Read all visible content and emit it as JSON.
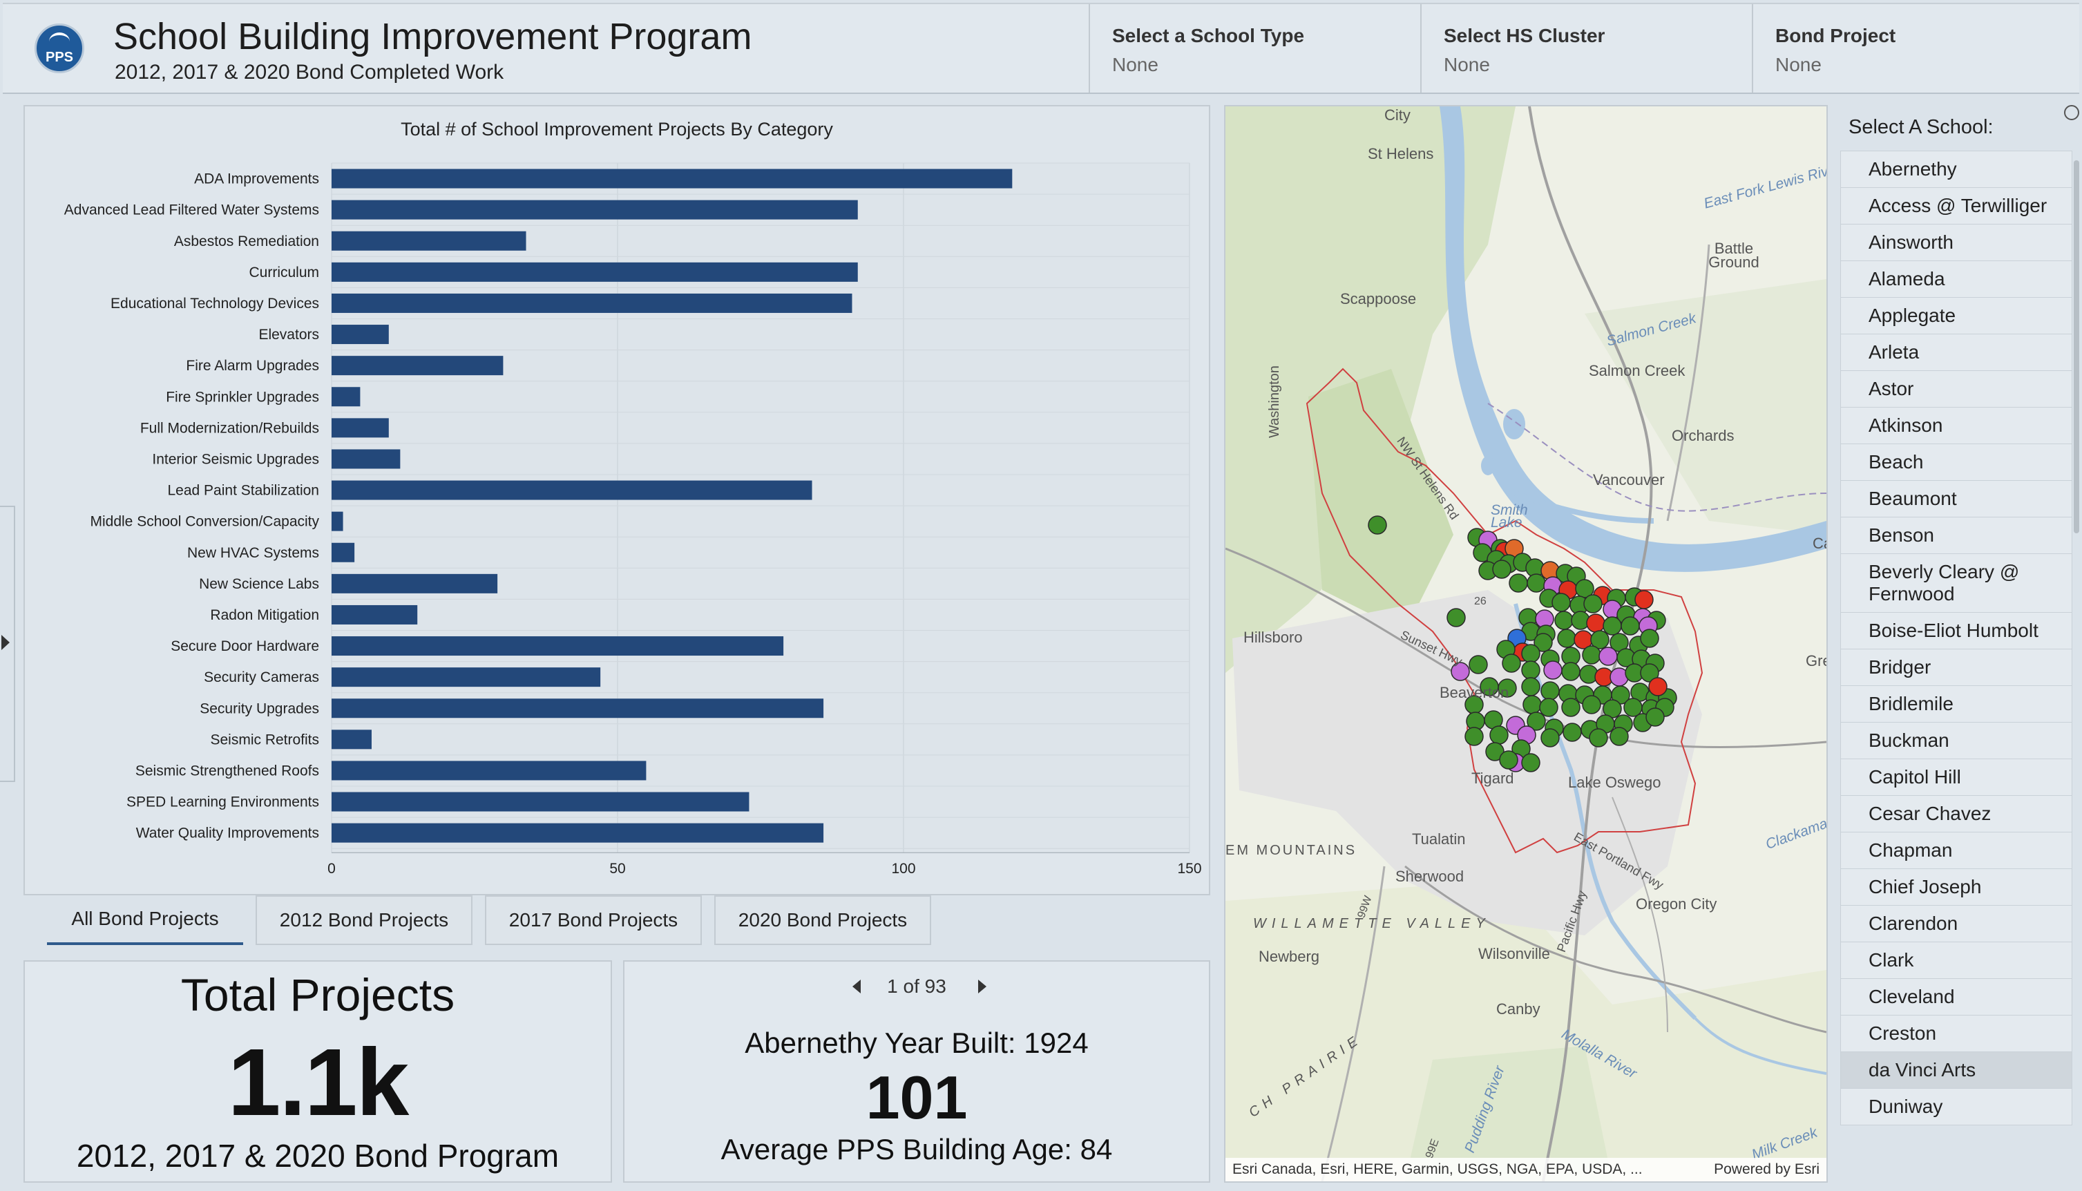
{
  "header": {
    "title": "School Building Improvement Program",
    "subtitle": "2012, 2017 & 2020 Bond Completed Work",
    "logo_text": "PPS",
    "selectors": [
      {
        "label": "Select a School Type",
        "value": "None"
      },
      {
        "label": "Select HS Cluster",
        "value": "None"
      },
      {
        "label": "Bond Project",
        "value": "None"
      }
    ]
  },
  "chart_data": {
    "type": "bar",
    "orientation": "horizontal",
    "title": "Total # of School Improvement Projects By Category",
    "categories": [
      "ADA Improvements",
      "Advanced Lead Filtered Water Systems",
      "Asbestos Remediation",
      "Curriculum",
      "Educational Technology Devices",
      "Elevators",
      "Fire Alarm Upgrades",
      "Fire Sprinkler Upgrades",
      "Full Modernization/Rebuilds",
      "Interior Seismic Upgrades",
      "Lead Paint Stabilization",
      "Middle School Conversion/Capacity",
      "New HVAC Systems",
      "New Science Labs",
      "Radon Mitigation",
      "Secure Door Hardware",
      "Security Cameras",
      "Security Upgrades",
      "Seismic Retrofits",
      "Seismic Strengthened Roofs",
      "SPED Learning Environments",
      "Water Quality Improvements"
    ],
    "values": [
      119,
      92,
      34,
      92,
      91,
      10,
      30,
      5,
      10,
      12,
      84,
      2,
      4,
      29,
      15,
      79,
      47,
      86,
      7,
      55,
      73,
      86
    ],
    "xlim": [
      0,
      150
    ],
    "xticks": [
      0,
      50,
      100,
      150
    ],
    "bar_color": "#23487a",
    "grid": true
  },
  "tabs": [
    {
      "label": "All Bond Projects",
      "active": true
    },
    {
      "label": "2012 Bond Projects",
      "active": false
    },
    {
      "label": "2017 Bond Projects",
      "active": false
    },
    {
      "label": "2020 Bond Projects",
      "active": false
    }
  ],
  "total_card": {
    "title": "Total Projects",
    "value": "1.1k",
    "subtitle": "2012, 2017 & 2020 Bond Program"
  },
  "school_card": {
    "pager": "1 of 93",
    "year_built": "Abernethy Year Built: 1924",
    "age": "101",
    "average_age": "Average PPS Building Age: 84"
  },
  "map": {
    "places": [
      "City",
      "St Helens",
      "Scappoose",
      "Battle Ground",
      "Salmon Creek",
      "Orchards",
      "Vancouver",
      "Hillsboro",
      "Beaverton",
      "Tigard",
      "Lake Oswego",
      "Tualatin",
      "Sherwood",
      "Oregon City",
      "Newberg",
      "Wilsonville",
      "Canby",
      "Gre",
      "Ca"
    ],
    "water_labels": [
      "Smith Lake",
      "Salmon Creek",
      "East Fork Lewis Riv",
      "Clackamas",
      "Molalla River",
      "Milk Creek",
      "Pudding River"
    ],
    "road_labels": [
      "Washington",
      "NW St Helens Rd",
      "Sunset Hwy",
      "East Portland Fwy",
      "Pacific Hwy",
      "99W",
      "99E",
      "26"
    ],
    "region_labels": [
      "EM MOUNTAINS",
      "WILLAMETTE VALLEY",
      "CH PRAIRIE"
    ],
    "attribution": "Esri Canada, Esri, HERE, Garmin, USGS, NGA, EPA, USDA, ...",
    "powered_by": "Powered by Esri",
    "marker_colors": {
      "green": "#3f8f2a",
      "red": "#e0301e",
      "purple": "#c36bd9",
      "blue": "#2f6fd8",
      "orange": "#e06a2a"
    }
  },
  "school_list": {
    "title": "Select A School:",
    "items": [
      "Abernethy",
      "Access @ Terwilliger",
      "Ainsworth",
      "Alameda",
      "Applegate",
      "Arleta",
      "Astor",
      "Atkinson",
      "Beach",
      "Beaumont",
      "Benson",
      "Beverly Cleary @ Fernwood",
      "Boise-Eliot Humbolt",
      "Bridger",
      "Bridlemile",
      "Buckman",
      "Capitol Hill",
      "Cesar Chavez",
      "Chapman",
      "Chief Joseph",
      "Clarendon",
      "Clark",
      "Cleveland",
      "Creston",
      "da Vinci Arts",
      "Duniway"
    ],
    "highlighted": "da Vinci Arts"
  }
}
